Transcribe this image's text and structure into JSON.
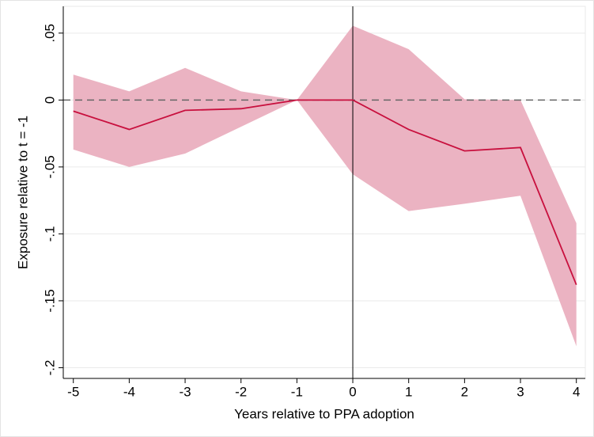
{
  "chart_data": {
    "type": "line",
    "x": [
      -5,
      -4,
      -3,
      -2,
      -1,
      0,
      1,
      2,
      3,
      4
    ],
    "values": [
      -0.0083,
      -0.022,
      -0.0077,
      -0.0065,
      0,
      0,
      -0.022,
      -0.038,
      -0.0355,
      -0.138
    ],
    "ci_upper": [
      0.019,
      0.0065,
      0.024,
      0.0065,
      0,
      0.0555,
      0.038,
      0.0006,
      0,
      -0.092
    ],
    "ci_lower": [
      -0.037,
      -0.05,
      -0.04,
      -0.02,
      0,
      -0.0555,
      -0.083,
      -0.0775,
      -0.0715,
      -0.184
    ],
    "color": "#c8103e",
    "band_color": "#ebb3c2",
    "xlabel": "Years relative to PPA adoption",
    "ylabel": "Exposure relative to t = -1",
    "xlim": [
      -5.18,
      4.16
    ],
    "ylim": [
      -0.208,
      0.07
    ],
    "xticks": [
      -5,
      -4,
      -3,
      -2,
      -1,
      0,
      1,
      2,
      3,
      4
    ],
    "yticks": [
      {
        "value": 0.05,
        "label": ".05"
      },
      0,
      {
        "value": -0.05,
        "label": "-.05"
      },
      {
        "value": -0.1,
        "label": "-.1"
      },
      {
        "value": -0.15,
        "label": "-.15"
      },
      {
        "value": -0.2,
        "label": "-.2"
      }
    ],
    "hline": 0,
    "vline": 0,
    "grid": true
  }
}
